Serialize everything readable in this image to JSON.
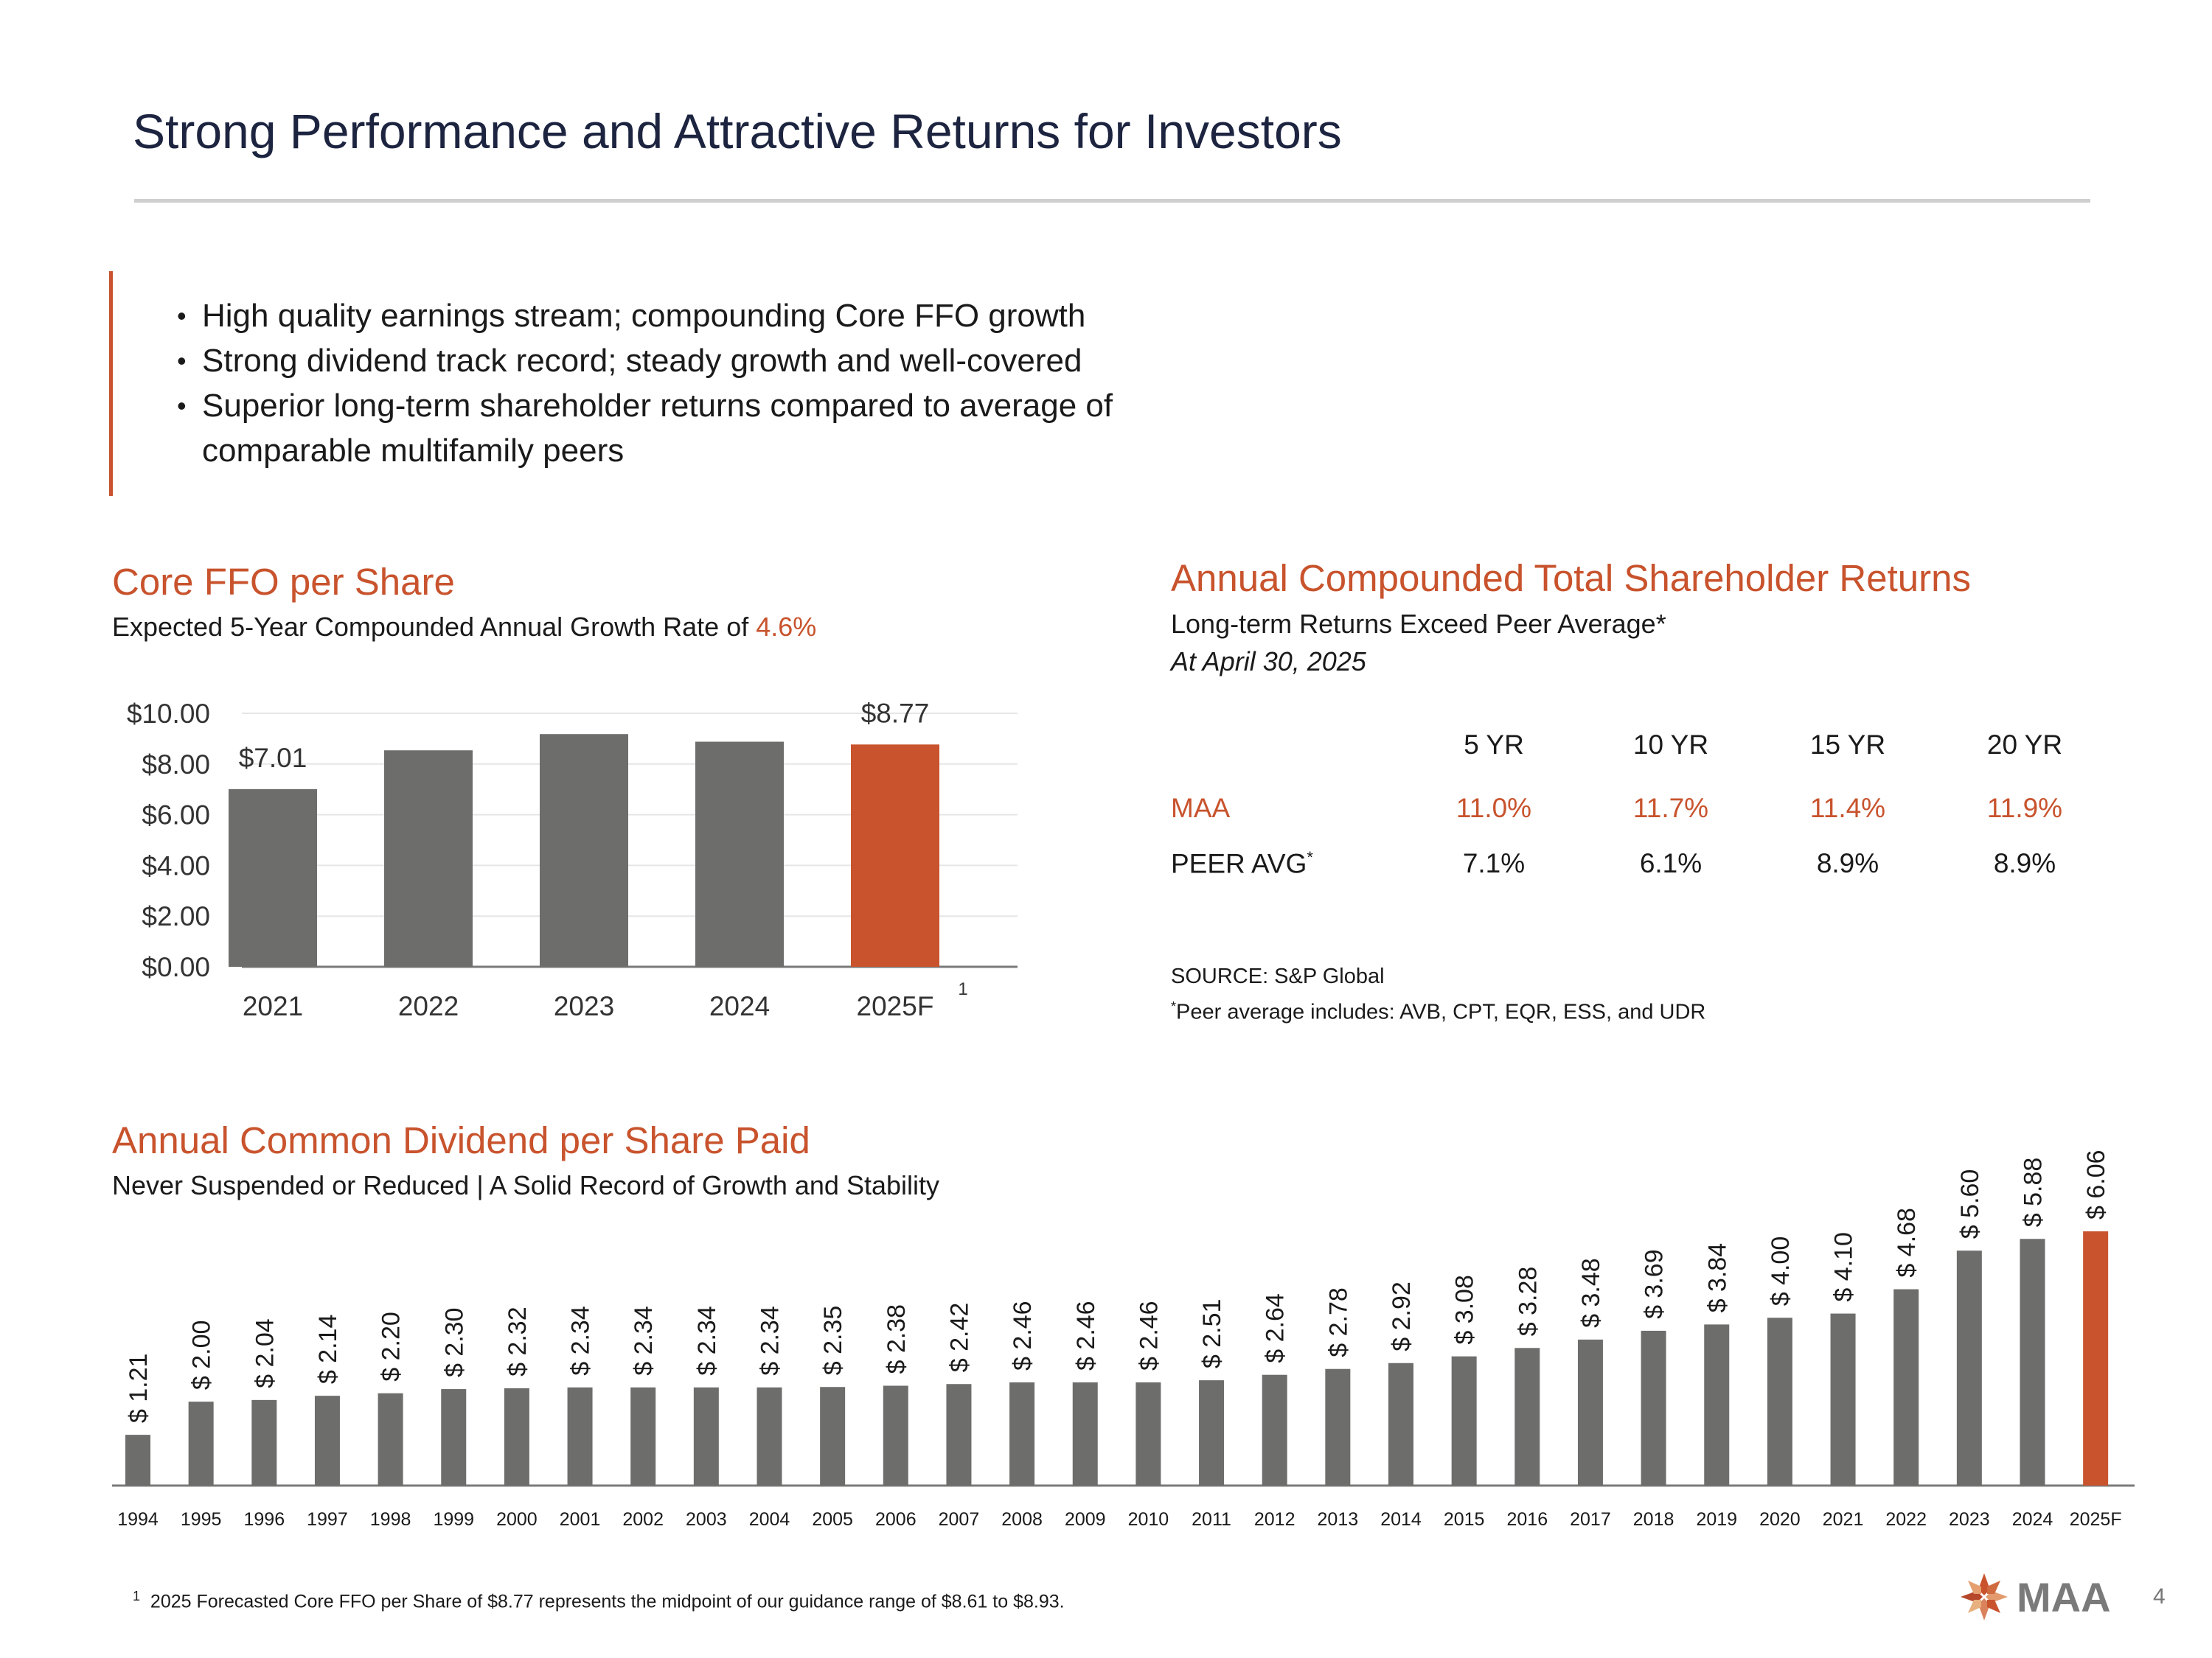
{
  "title": "Strong Performance and Attractive Returns for Investors",
  "bullets": [
    "High quality earnings stream; compounding Core FFO growth",
    "Strong dividend track record; steady growth and well-covered",
    "Superior long-term shareholder returns compared to average of comparable multifamily peers"
  ],
  "ffo": {
    "title": "Core FFO per Share",
    "subtitle_prefix": "Expected 5-Year Compounded Annual Growth Rate of ",
    "subtitle_highlight": "4.6%"
  },
  "returns": {
    "title": "Annual Compounded Total Shareholder Returns",
    "subtitle": "Long-term Returns Exceed Peer Average*",
    "date": "At April 30, 2025",
    "columns": [
      "5 YR",
      "10 YR",
      "15 YR",
      "20 YR"
    ],
    "rows": [
      {
        "label": "MAA",
        "values": [
          "11.0%",
          "11.7%",
          "11.4%",
          "11.9%"
        ]
      },
      {
        "label": "PEER AVG",
        "label_sup": "*",
        "values": [
          "7.1%",
          "6.1%",
          "8.9%",
          "8.9%"
        ]
      }
    ],
    "source": "SOURCE:  S&P Global",
    "footnote_sup": "*",
    "footnote": "Peer average includes: AVB, CPT, EQR, ESS, and UDR"
  },
  "dividend": {
    "title": "Annual Common Dividend per Share Paid",
    "subtitle": "Never Suspended or Reduced | A Solid Record of Growth and Stability"
  },
  "footnote": {
    "sup": "1",
    "text": "2025 Forecasted Core FFO per Share of $8.77 represents the midpoint of our guidance range of $8.61 to $8.93."
  },
  "logo_text": "MAA",
  "page_number": "4",
  "colors": {
    "accent": "#c8532d",
    "bar_gray": "#6d6e6c",
    "title_navy": "#1c2440"
  },
  "chart_data": [
    {
      "type": "bar",
      "title": "Core FFO per Share",
      "categories": [
        "2021",
        "2022",
        "2023",
        "2024",
        "2025F"
      ],
      "values": [
        7.01,
        8.54,
        9.18,
        8.88,
        8.77
      ],
      "highlight_index": 4,
      "highlight_note": "1",
      "data_labels": {
        "0": "$7.01",
        "4": "$8.77"
      },
      "ytick_labels": [
        "$0.00",
        "$2.00",
        "$4.00",
        "$6.00",
        "$8.00",
        "$10.00"
      ],
      "ylim": [
        0,
        10
      ],
      "grid": true
    },
    {
      "type": "bar",
      "title": "Annual Common Dividend per Share Paid",
      "categories": [
        "1994",
        "1995",
        "1996",
        "1997",
        "1998",
        "1999",
        "2000",
        "2001",
        "2002",
        "2003",
        "2004",
        "2005",
        "2006",
        "2007",
        "2008",
        "2009",
        "2010",
        "2011",
        "2012",
        "2013",
        "2014",
        "2015",
        "2016",
        "2017",
        "2018",
        "2019",
        "2020",
        "2021",
        "2022",
        "2023",
        "2024",
        "2025F"
      ],
      "values": [
        1.21,
        2.0,
        2.04,
        2.14,
        2.2,
        2.3,
        2.32,
        2.34,
        2.34,
        2.34,
        2.34,
        2.35,
        2.38,
        2.42,
        2.46,
        2.46,
        2.46,
        2.51,
        2.64,
        2.78,
        2.92,
        3.08,
        3.28,
        3.48,
        3.69,
        3.84,
        4.0,
        4.1,
        4.68,
        5.6,
        5.88,
        6.06
      ],
      "labels": [
        "$ 1.21",
        "$ 2.00",
        "$ 2.04",
        "$ 2.14",
        "$ 2.20",
        "$ 2.30",
        "$ 2.32",
        "$ 2.34",
        "$ 2.34",
        "$ 2.34",
        "$ 2.34",
        "$ 2.35",
        "$ 2.38",
        "$ 2.42",
        "$ 2.46",
        "$ 2.46",
        "$ 2.46",
        "$ 2.51",
        "$ 2.64",
        "$ 2.78",
        "$ 2.92",
        "$ 3.08",
        "$ 3.28",
        "$ 3.48",
        "$ 3.69",
        "$ 3.84",
        "$ 4.00",
        "$ 4.10",
        "$ 4.68",
        "$ 5.60",
        "$ 5.88",
        "$ 6.06"
      ],
      "highlight_index": 31,
      "ylim": [
        0,
        6.5
      ],
      "grid": false
    }
  ]
}
